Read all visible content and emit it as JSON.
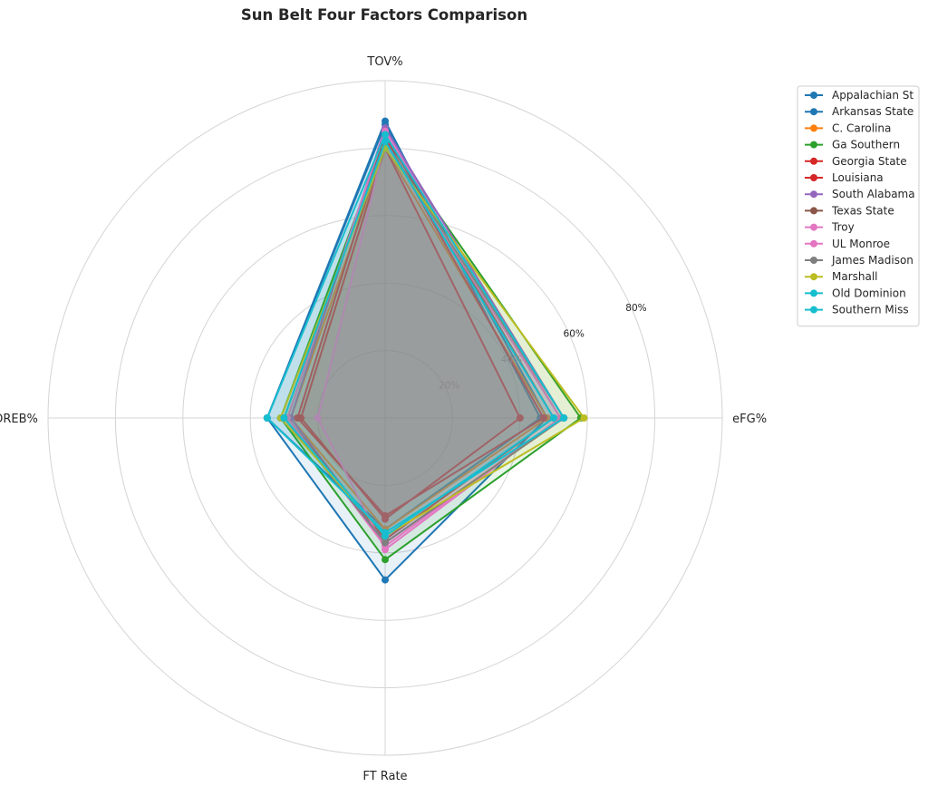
{
  "chart_data": {
    "type": "radar",
    "title": "Sun Belt Four Factors Comparison",
    "axes": [
      "eFG%",
      "TOV%",
      "OREB%",
      "FT Rate"
    ],
    "rlim": [
      0,
      100
    ],
    "radial_ticks": [
      {
        "value": 20,
        "label": "20%"
      },
      {
        "value": 40,
        "label": "40%"
      },
      {
        "value": 60,
        "label": "60%"
      },
      {
        "value": 80,
        "label": "80%"
      }
    ],
    "grid": true,
    "legend_position": "upper right, outside plot",
    "series": [
      {
        "name": "Appalachian St",
        "color": "#1f77b4",
        "values": [
          46,
          88,
          35,
          33
        ]
      },
      {
        "name": "Arkansas State",
        "color": "#1f77b4",
        "values": [
          48,
          87,
          35,
          48
        ]
      },
      {
        "name": "C. Carolina",
        "color": "#ff7f0e",
        "values": [
          48,
          80,
          28,
          33
        ]
      },
      {
        "name": "Ga Southern",
        "color": "#2ca02c",
        "values": [
          58,
          83,
          31,
          42
        ]
      },
      {
        "name": "Georgia State",
        "color": "#d62728",
        "values": [
          40,
          80,
          25,
          30
        ]
      },
      {
        "name": "Louisiana",
        "color": "#d62728",
        "values": [
          47,
          83,
          26,
          29
        ]
      },
      {
        "name": "South Alabama",
        "color": "#9467bd",
        "values": [
          53,
          86,
          28,
          37
        ]
      },
      {
        "name": "Texas State",
        "color": "#8c564b",
        "values": [
          50,
          84,
          29,
          36
        ]
      },
      {
        "name": "Troy",
        "color": "#e377c2",
        "values": [
          52,
          82,
          20,
          39
        ]
      },
      {
        "name": "UL Monroe",
        "color": "#e377c2",
        "values": [
          52,
          85,
          29,
          38
        ]
      },
      {
        "name": "James Madison",
        "color": "#7f7f7f",
        "values": [
          53,
          82,
          30,
          37
        ]
      },
      {
        "name": "Marshall",
        "color": "#bcbd22",
        "values": [
          59,
          80,
          31,
          35
        ]
      },
      {
        "name": "Old Dominion",
        "color": "#17becf",
        "values": [
          50,
          82,
          30,
          35
        ]
      },
      {
        "name": "Southern Miss",
        "color": "#17becf",
        "values": [
          53,
          84,
          35,
          34
        ]
      }
    ]
  }
}
